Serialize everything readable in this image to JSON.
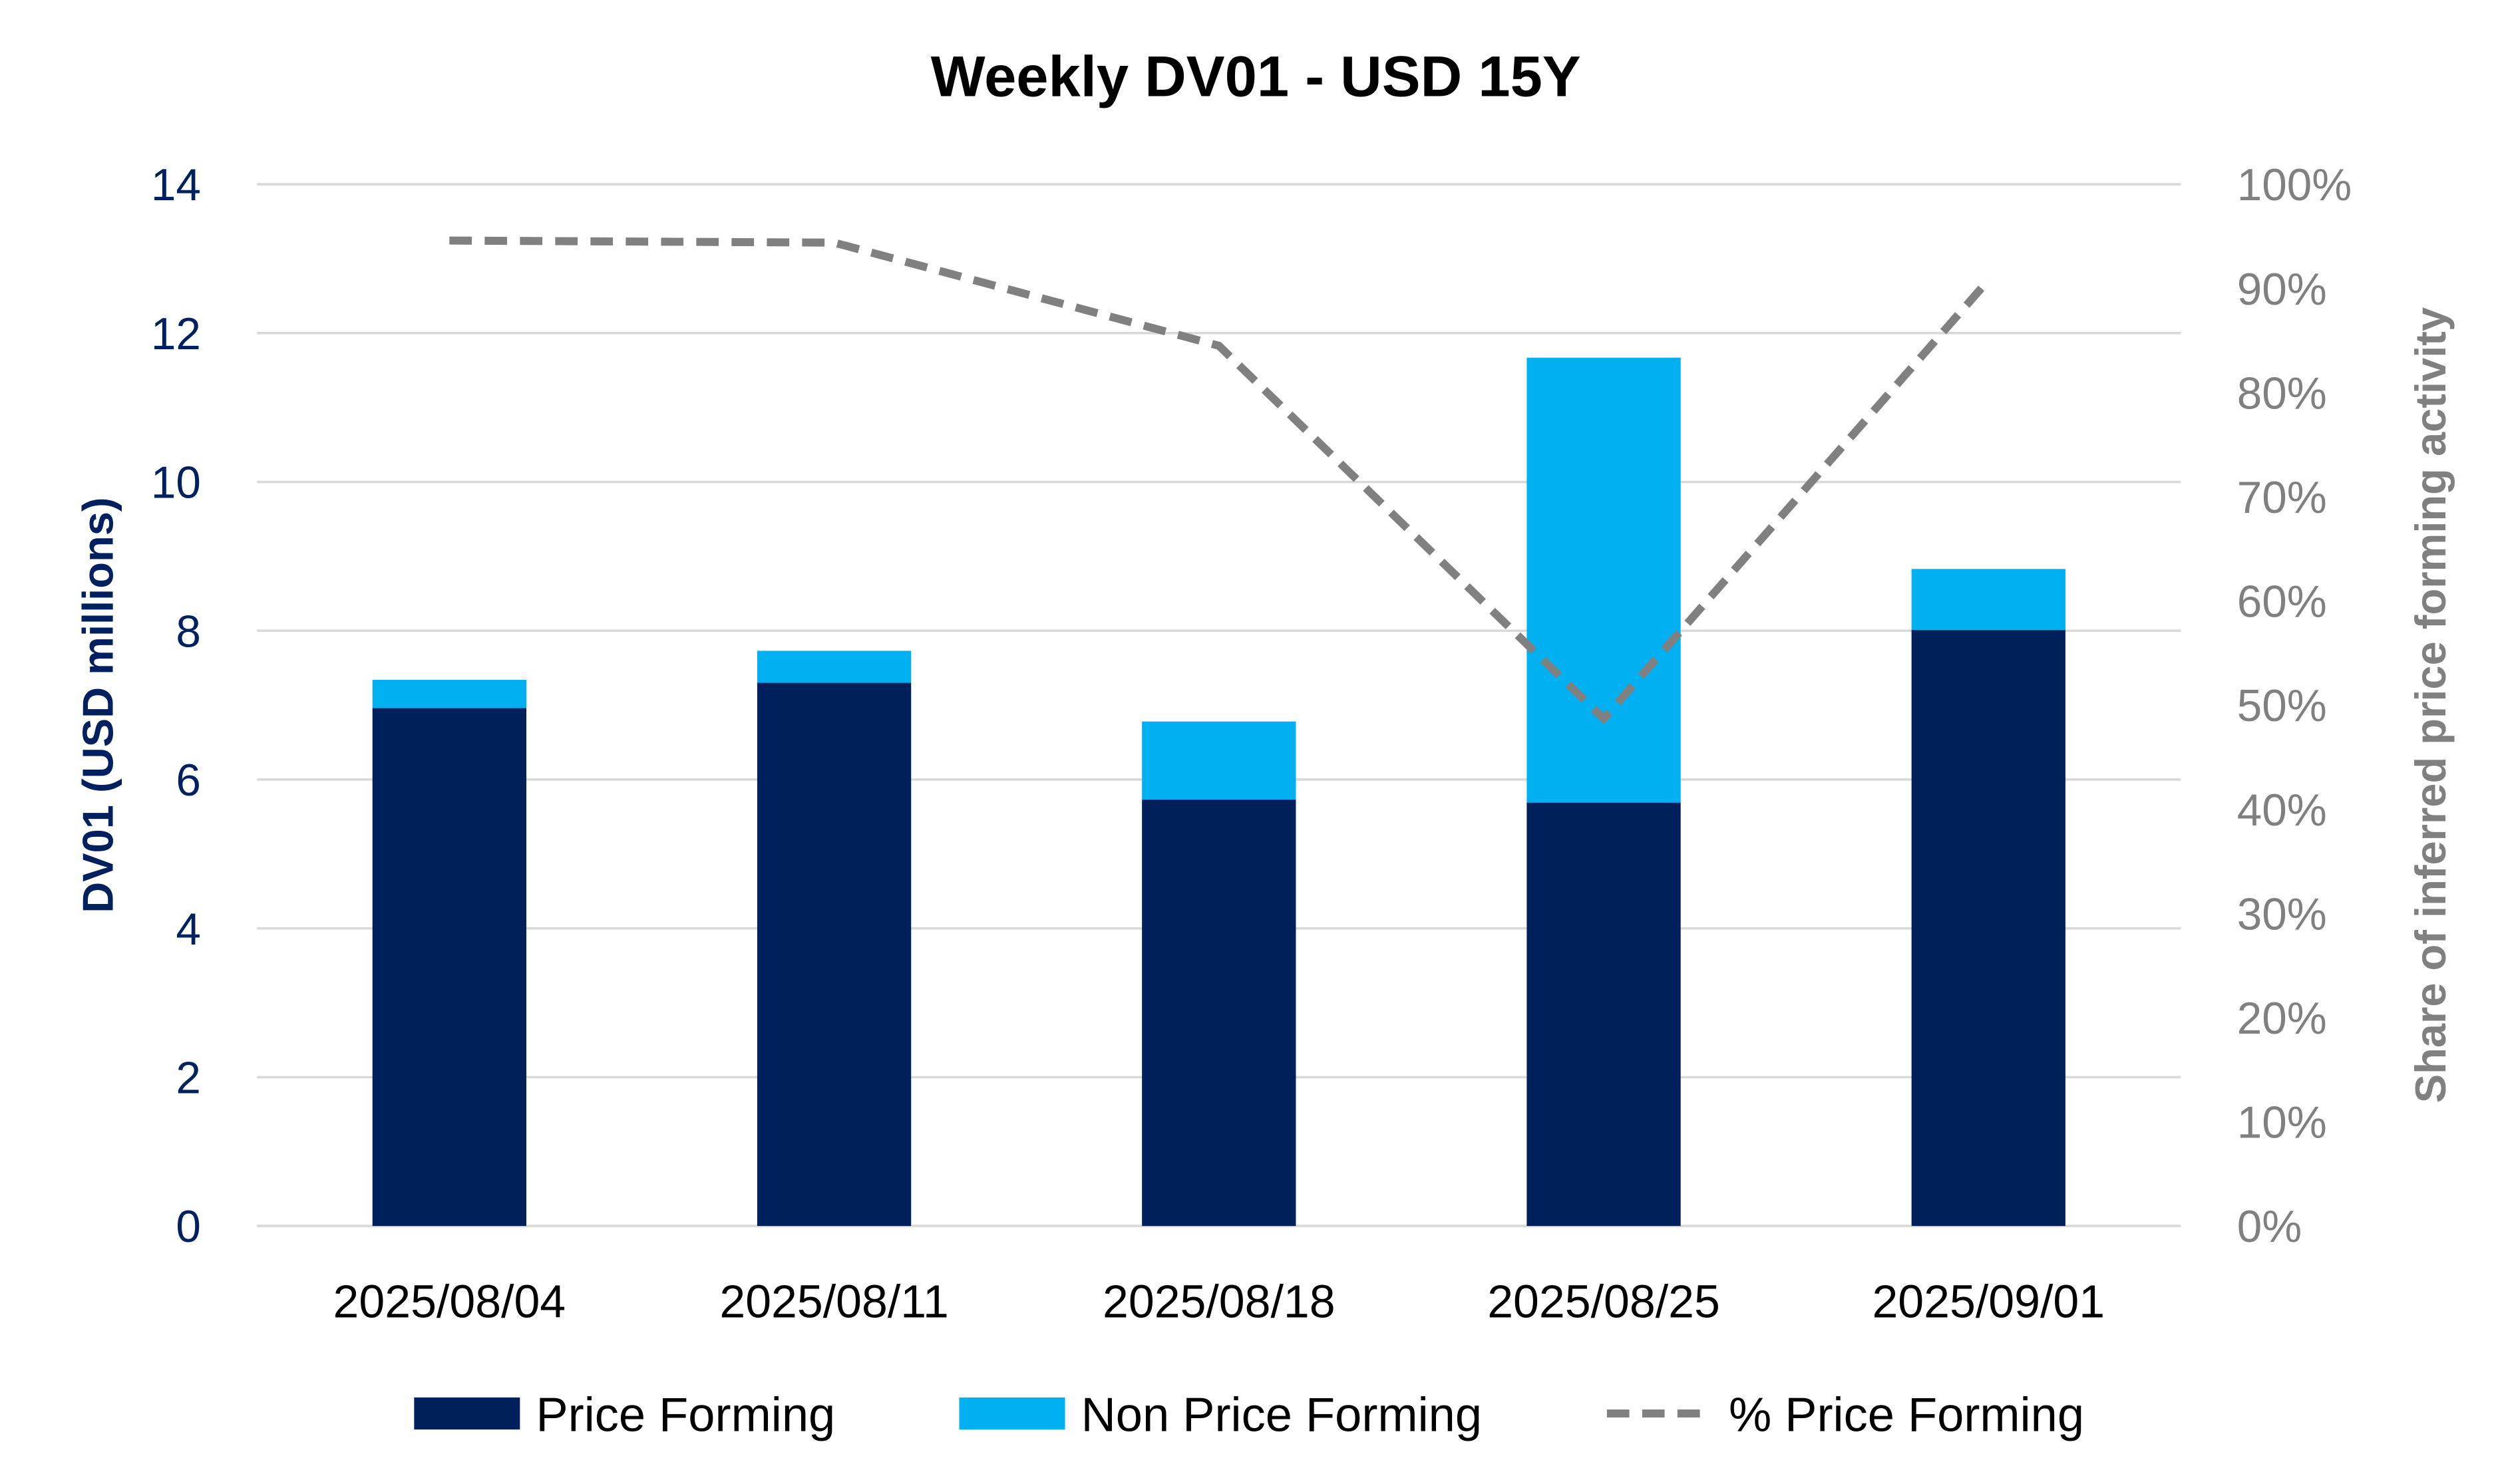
{
  "chart_data": {
    "type": "bar",
    "stacked": true,
    "title": "Weekly DV01 - USD 15Y",
    "categories": [
      "2025/08/04",
      "2025/08/11",
      "2025/08/18",
      "2025/08/25",
      "2025/09/01"
    ],
    "ylabel": "DV01 (USD millions)",
    "ylim": [
      0,
      14
    ],
    "yticks": [
      "0",
      "2",
      "4",
      "6",
      "8",
      "10",
      "12",
      "14"
    ],
    "y2label": "Share of inferred price forming activity",
    "y2lim": [
      0,
      100
    ],
    "y2ticks": [
      "0%",
      "10%",
      "20%",
      "30%",
      "40%",
      "50%",
      "60%",
      "70%",
      "80%",
      "90%",
      "100%"
    ],
    "grid": true,
    "legend_position": "bottom",
    "series": [
      {
        "name": "Price Forming",
        "type": "bar",
        "axis": "left",
        "color": "#00205C",
        "values": [
          6.96,
          7.3,
          5.73,
          5.69,
          8.01
        ]
      },
      {
        "name": "Non Price Forming",
        "type": "bar",
        "axis": "left",
        "color": "#00B0F0",
        "values": [
          0.38,
          0.43,
          1.05,
          5.98,
          0.82
        ]
      },
      {
        "name": "% Price Forming",
        "type": "line",
        "dashed": true,
        "axis": "right",
        "color": "#808080",
        "values": [
          94.6,
          94.4,
          84.5,
          48.7,
          90.8
        ]
      }
    ]
  }
}
